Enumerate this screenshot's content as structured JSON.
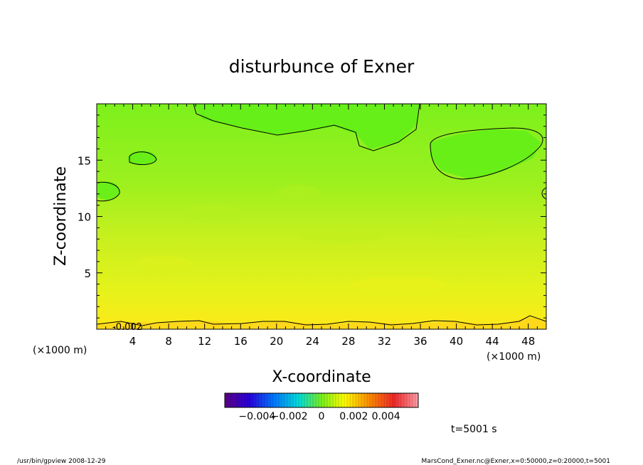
{
  "chart_data": {
    "type": "heatmap",
    "title": "disturbunce of Exner",
    "xlabel": "X-coordinate",
    "ylabel": "Z-coordinate",
    "x_unit": "(×1000 m)",
    "y_unit": "(×1000 m)",
    "xlim": [
      0,
      50
    ],
    "ylim": [
      0,
      20
    ],
    "xticks": [
      "4",
      "8",
      "12",
      "16",
      "20",
      "24",
      "28",
      "32",
      "36",
      "40",
      "44",
      "48"
    ],
    "yticks": [
      "5",
      "10",
      "15"
    ],
    "contour_label": "-0.002",
    "colorbar": {
      "range": [
        -0.006,
        0.006
      ],
      "ticks": [
        "−0.004",
        "−0.002",
        "0",
        "0.002",
        "0.004"
      ]
    },
    "time_label": "t=5001 s",
    "footer_left": "/usr/bin/gpview   2008-12-29",
    "footer_right": "MarsCond_Exner.nc@Exner,x=0:50000,z=0:20000,t=5001",
    "colors": {
      "upper_region": "#6bf21a",
      "mid_region": "#a8f01e",
      "lower_region": "#f2f21a",
      "bottom_band": "#ffe61a",
      "contour": "#000000"
    }
  }
}
